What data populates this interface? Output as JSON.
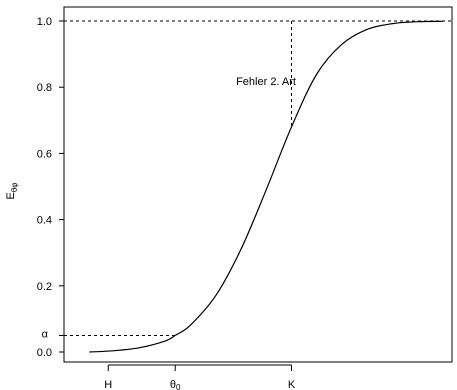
{
  "chart_data": {
    "type": "line",
    "title": "",
    "xlabel": "",
    "ylabel": "E_θφ",
    "ylabel_main": "E",
    "ylabel_sub": "θφ",
    "ylim": [
      0.0,
      1.0
    ],
    "yticks": [
      0.0,
      0.2,
      0.4,
      0.6,
      0.8,
      1.0
    ],
    "ytick_labels": [
      "0.0",
      "0.2",
      "0.4",
      "0.6",
      "0.8",
      "1.0"
    ],
    "alpha_label": "α",
    "alpha_value": 0.05,
    "x_markers": [
      {
        "name": "H",
        "label": "H",
        "x": 0.35
      },
      {
        "name": "theta0",
        "label": "θ",
        "subscript": "0",
        "x": 0.88
      },
      {
        "name": "K",
        "label": "K",
        "x": 1.8
      }
    ],
    "xlim": [
      0.0,
      3.07
    ],
    "series": [
      {
        "x": [
          0.2,
          0.4,
          0.6,
          0.8,
          0.88,
          1.0,
          1.2,
          1.4,
          1.6,
          1.8,
          2.0,
          2.2,
          2.4,
          2.6,
          2.8,
          3.0
        ],
        "values": [
          0.0,
          0.004,
          0.013,
          0.033,
          0.05,
          0.081,
          0.17,
          0.31,
          0.49,
          0.68,
          0.84,
          0.93,
          0.975,
          0.992,
          0.998,
          0.999
        ]
      }
    ],
    "annotation": {
      "text": "Fehler 2. Art",
      "power_at_K": 0.68
    },
    "hline_at": 1.0,
    "grid": false
  }
}
